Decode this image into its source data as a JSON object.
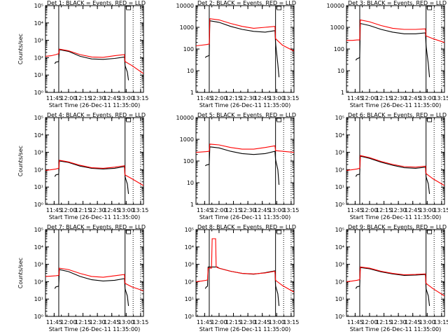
{
  "chart_data": [
    {
      "type": "line",
      "title": "Det 1: BLACK = Events, RED = LLD",
      "xlabel": "Start Time (26-Dec-11 11:35:00)",
      "ylabel": "Counts/sec",
      "ylog": true,
      "ylim": [
        1,
        100000
      ],
      "yticks": [
        "10⁰",
        "10¹",
        "10²",
        "10³",
        "10⁴",
        "10⁵"
      ],
      "xlim": [
        11.6,
        13.3
      ],
      "xticks": [
        11.75,
        12.0,
        12.25,
        12.5,
        12.75,
        13.0,
        13.25
      ],
      "xticklabels": [
        "11:45",
        "12:00",
        "12:15",
        "12:30",
        "12:45",
        "13:00",
        "13:15"
      ],
      "vlines": [
        11.83,
        12.98
      ],
      "dotted_vlines": [
        13.12,
        13.25
      ],
      "series": [
        {
          "color": "#ff0000",
          "x": [
            11.6,
            11.7,
            11.78,
            11.83,
            11.84,
            12.0,
            12.2,
            12.4,
            12.6,
            12.8,
            12.97,
            12.98,
            13.1,
            13.3
          ],
          "y": [
            120,
            130,
            150,
            170,
            310,
            250,
            150,
            110,
            105,
            130,
            150,
            60,
            35,
            12
          ]
        },
        {
          "color": "#000000",
          "x": [
            11.76,
            11.78,
            11.83,
            11.84,
            12.0,
            12.2,
            12.4,
            12.6,
            12.8,
            12.97,
            12.98,
            13.02,
            13.04
          ],
          "y": [
            45,
            55,
            60,
            290,
            230,
            120,
            85,
            80,
            90,
            110,
            35,
            15,
            5
          ]
        }
      ]
    },
    {
      "type": "line",
      "title": "Det 2: BLACK = Events, RED = LLD",
      "xlabel": "Start Time (26-Dec-11 11:35:00)",
      "ylabel": "",
      "ylog": true,
      "ylim": [
        1,
        10000
      ],
      "yticks": [
        "1",
        "10",
        "100",
        "1000",
        "10000"
      ],
      "xlim": [
        11.6,
        13.3
      ],
      "xticks": [
        11.75,
        12.0,
        12.25,
        12.5,
        12.75,
        13.0,
        13.25
      ],
      "xticklabels": [
        "11:45",
        "12:00",
        "12:15",
        "12:30",
        "12:45",
        "13:00",
        "13:15"
      ],
      "vlines": [
        11.83,
        12.98
      ],
      "dotted_vlines": [
        13.12,
        13.25
      ],
      "series": [
        {
          "color": "#ff0000",
          "x": [
            11.6,
            11.7,
            11.78,
            11.83,
            11.84,
            12.0,
            12.2,
            12.4,
            12.6,
            12.8,
            12.97,
            12.98,
            13.1,
            13.3
          ],
          "y": [
            140,
            150,
            160,
            170,
            2500,
            2200,
            1500,
            1100,
            900,
            1000,
            1100,
            300,
            150,
            80
          ]
        },
        {
          "color": "#000000",
          "x": [
            11.76,
            11.78,
            11.83,
            11.84,
            12.0,
            12.2,
            12.4,
            12.6,
            12.8,
            12.97,
            12.98,
            13.02,
            13.04
          ],
          "y": [
            40,
            45,
            50,
            2000,
            1700,
            1100,
            800,
            650,
            600,
            700,
            200,
            20,
            5
          ]
        }
      ]
    },
    {
      "type": "line",
      "title": "Det 3: BLACK = Events, RED = LLD",
      "xlabel": "Start Time (26-Dec-11 11:35:00)",
      "ylabel": "",
      "ylog": true,
      "ylim": [
        1,
        10000
      ],
      "yticks": [
        "1",
        "10",
        "100",
        "1000",
        "10000"
      ],
      "xlim": [
        11.6,
        13.3
      ],
      "xticks": [
        11.75,
        12.0,
        12.25,
        12.5,
        12.75,
        13.0,
        13.25
      ],
      "xticklabels": [
        "11:45",
        "12:00",
        "12:15",
        "12:30",
        "12:45",
        "13:00",
        "13:15"
      ],
      "vlines": [
        11.83,
        12.98
      ],
      "dotted_vlines": [
        13.12,
        13.25
      ],
      "series": [
        {
          "color": "#ff0000",
          "x": [
            11.6,
            11.7,
            11.78,
            11.83,
            11.84,
            12.0,
            12.2,
            12.4,
            12.6,
            12.8,
            12.97,
            12.98,
            13.1,
            13.3
          ],
          "y": [
            250,
            250,
            260,
            260,
            2200,
            1800,
            1200,
            900,
            800,
            800,
            850,
            400,
            300,
            200
          ]
        },
        {
          "color": "#000000",
          "x": [
            11.76,
            11.78,
            11.83,
            11.84,
            12.0,
            12.2,
            12.4,
            12.6,
            12.8,
            12.97,
            12.98,
            13.02,
            13.04
          ],
          "y": [
            30,
            35,
            40,
            1500,
            1200,
            800,
            600,
            500,
            500,
            550,
            150,
            20,
            5
          ]
        }
      ]
    },
    {
      "type": "line",
      "title": "Det 4: BLACK = Events, RED = LLD",
      "xlabel": "Start Time (26-Dec-11 11:35:00)",
      "ylabel": "Counts/sec",
      "ylog": true,
      "ylim": [
        1,
        100000
      ],
      "yticks": [
        "10⁰",
        "10¹",
        "10²",
        "10³",
        "10⁴",
        "10⁵"
      ],
      "xlim": [
        11.6,
        13.3
      ],
      "xticks": [
        11.75,
        12.0,
        12.25,
        12.5,
        12.75,
        13.0,
        13.25
      ],
      "xticklabels": [
        "11:45",
        "12:00",
        "12:15",
        "12:30",
        "12:45",
        "13:00",
        "13:15"
      ],
      "vlines": [
        11.83,
        12.98
      ],
      "dotted_vlines": [
        13.12,
        13.25
      ],
      "series": [
        {
          "color": "#ff0000",
          "x": [
            11.6,
            11.7,
            11.78,
            11.83,
            11.84,
            12.0,
            12.2,
            12.4,
            12.6,
            12.8,
            12.97,
            12.98,
            13.1,
            13.3
          ],
          "y": [
            90,
            100,
            110,
            120,
            350,
            280,
            180,
            130,
            120,
            140,
            170,
            50,
            30,
            12
          ]
        },
        {
          "color": "#000000",
          "x": [
            11.76,
            11.78,
            11.83,
            11.84,
            12.0,
            12.2,
            12.4,
            12.6,
            12.8,
            12.97,
            12.98,
            13.02,
            13.04
          ],
          "y": [
            40,
            50,
            55,
            320,
            260,
            160,
            120,
            110,
            120,
            150,
            40,
            15,
            4
          ]
        }
      ]
    },
    {
      "type": "line",
      "title": "Det 5: BLACK = Events, RED = LLD",
      "xlabel": "Start Time (26-Dec-11 11:35:00)",
      "ylabel": "",
      "ylog": true,
      "ylim": [
        1,
        10000
      ],
      "yticks": [
        "1",
        "10",
        "100",
        "1000",
        "10000"
      ],
      "xlim": [
        11.6,
        13.3
      ],
      "xticks": [
        11.75,
        12.0,
        12.25,
        12.5,
        12.75,
        13.0,
        13.25
      ],
      "xticklabels": [
        "11:45",
        "12:00",
        "12:15",
        "12:30",
        "12:45",
        "13:00",
        "13:15"
      ],
      "vlines": [
        11.83,
        12.98
      ],
      "dotted_vlines": [
        13.12,
        13.25
      ],
      "series": [
        {
          "color": "#ff0000",
          "x": [
            11.6,
            11.7,
            11.78,
            11.83,
            11.84,
            12.0,
            12.2,
            12.4,
            12.6,
            12.8,
            12.97,
            12.98,
            13.1,
            13.3
          ],
          "y": [
            250,
            260,
            270,
            280,
            600,
            550,
            420,
            350,
            350,
            420,
            500,
            300,
            280,
            250
          ]
        },
        {
          "color": "#000000",
          "x": [
            11.76,
            11.78,
            11.83,
            11.84,
            12.0,
            12.2,
            12.4,
            12.6,
            12.8,
            12.97,
            12.98,
            13.02,
            13.04
          ],
          "y": [
            60,
            65,
            70,
            450,
            400,
            280,
            220,
            200,
            220,
            280,
            120,
            40,
            8
          ]
        }
      ]
    },
    {
      "type": "line",
      "title": "Det 6: BLACK = Events, RED = LLD",
      "xlabel": "Start Time (26-Dec-11 11:35:00)",
      "ylabel": "",
      "ylog": true,
      "ylim": [
        1,
        100000
      ],
      "yticks": [
        "10⁰",
        "10¹",
        "10²",
        "10³",
        "10⁴",
        "10⁵"
      ],
      "xlim": [
        11.6,
        13.3
      ],
      "xticks": [
        11.75,
        12.0,
        12.25,
        12.5,
        12.75,
        13.0,
        13.25
      ],
      "xticklabels": [
        "11:45",
        "12:00",
        "12:15",
        "12:30",
        "12:45",
        "13:00",
        "13:15"
      ],
      "vlines": [
        11.83,
        12.98
      ],
      "dotted_vlines": [
        13.12,
        13.25
      ],
      "series": [
        {
          "color": "#ff0000",
          "x": [
            11.6,
            11.7,
            11.78,
            11.83,
            11.84,
            12.0,
            12.2,
            12.4,
            12.6,
            12.8,
            12.97,
            12.98,
            13.1,
            13.3
          ],
          "y": [
            90,
            100,
            110,
            120,
            650,
            500,
            300,
            200,
            150,
            140,
            160,
            60,
            30,
            12
          ]
        },
        {
          "color": "#000000",
          "x": [
            11.76,
            11.78,
            11.83,
            11.84,
            12.0,
            12.2,
            12.4,
            12.6,
            12.8,
            12.97,
            12.98,
            13.02,
            13.04
          ],
          "y": [
            40,
            50,
            55,
            600,
            450,
            270,
            180,
            130,
            120,
            140,
            40,
            15,
            4
          ]
        }
      ]
    },
    {
      "type": "line",
      "title": "Det 7: BLACK = Events, RED = LLD",
      "xlabel": "Start Time (26-Dec-11 11:35:00)",
      "ylabel": "Counts/sec",
      "ylog": true,
      "ylim": [
        1,
        100000
      ],
      "yticks": [
        "10⁰",
        "10¹",
        "10²",
        "10³",
        "10⁴",
        "10⁵"
      ],
      "xlim": [
        11.6,
        13.3
      ],
      "xticks": [
        11.75,
        12.0,
        12.25,
        12.5,
        12.75,
        13.0,
        13.25
      ],
      "xticklabels": [
        "11:45",
        "12:00",
        "12:15",
        "12:30",
        "12:45",
        "13:00",
        "13:15"
      ],
      "vlines": [
        11.83,
        12.98
      ],
      "dotted_vlines": [
        13.12,
        13.25
      ],
      "series": [
        {
          "color": "#ff0000",
          "x": [
            11.6,
            11.7,
            11.78,
            11.83,
            11.84,
            12.0,
            12.2,
            12.4,
            12.6,
            12.8,
            12.97,
            12.98,
            13.1,
            13.3
          ],
          "y": [
            200,
            210,
            220,
            230,
            600,
            500,
            300,
            200,
            180,
            220,
            260,
            80,
            50,
            30
          ]
        },
        {
          "color": "#000000",
          "x": [
            11.76,
            11.78,
            11.83,
            11.84,
            12.0,
            12.2,
            12.4,
            12.6,
            12.8,
            12.97,
            12.98,
            13.02,
            13.04
          ],
          "y": [
            40,
            50,
            55,
            500,
            380,
            200,
            130,
            110,
            120,
            150,
            40,
            15,
            4
          ]
        }
      ]
    },
    {
      "type": "line",
      "title": "Det 8: BLACK = Events, RED = LLD",
      "xlabel": "Start Time (26-Dec-11 11:35:00)",
      "ylabel": "",
      "ylog": true,
      "ylim": [
        1,
        100000
      ],
      "yticks": [
        "10⁰",
        "10¹",
        "10²",
        "10³",
        "10⁴",
        "10⁵"
      ],
      "xlim": [
        11.6,
        13.3
      ],
      "xticks": [
        11.75,
        12.0,
        12.25,
        12.5,
        12.75,
        13.0,
        13.25
      ],
      "xticklabels": [
        "11:45",
        "12:00",
        "12:15",
        "12:30",
        "12:45",
        "13:00",
        "13:15"
      ],
      "vlines": [
        11.83,
        12.98
      ],
      "dotted_vlines": [
        13.12,
        13.25
      ],
      "series": [
        {
          "color": "#ff0000",
          "x": [
            11.6,
            11.7,
            11.78,
            11.8,
            11.81,
            11.87,
            11.88,
            11.94,
            11.95,
            11.97,
            12.0,
            12.2,
            12.4,
            12.6,
            12.8,
            12.97,
            12.98,
            13.1,
            13.3
          ],
          "y": [
            100,
            110,
            120,
            130,
            600,
            600,
            30000,
            30000,
            700,
            650,
            600,
            400,
            300,
            280,
            320,
            400,
            120,
            60,
            25
          ]
        },
        {
          "color": "#000000",
          "x": [
            11.76,
            11.78,
            11.8,
            11.81,
            11.97,
            12.0,
            12.2,
            12.4,
            12.6,
            12.8,
            12.97,
            12.98,
            13.02,
            13.04
          ],
          "y": [
            40,
            50,
            55,
            700,
            700,
            600,
            400,
            300,
            270,
            330,
            420,
            60,
            20,
            4
          ]
        }
      ]
    },
    {
      "type": "line",
      "title": "Det 9: BLACK = Events, RED = LLD",
      "xlabel": "Start Time (26-Dec-11 11:35:00)",
      "ylabel": "",
      "ylog": true,
      "ylim": [
        1,
        100000
      ],
      "yticks": [
        "10⁰",
        "10¹",
        "10²",
        "10³",
        "10⁴",
        "10⁵"
      ],
      "xlim": [
        11.6,
        13.3
      ],
      "xticks": [
        11.75,
        12.0,
        12.25,
        12.5,
        12.75,
        13.0,
        13.25
      ],
      "xticklabels": [
        "11:45",
        "12:00",
        "12:15",
        "12:30",
        "12:45",
        "13:00",
        "13:15"
      ],
      "vlines": [
        11.83,
        12.98
      ],
      "dotted_vlines": [
        13.12,
        13.25
      ],
      "series": [
        {
          "color": "#ff0000",
          "x": [
            11.6,
            11.7,
            11.78,
            11.83,
            11.84,
            12.0,
            12.2,
            12.4,
            12.6,
            12.8,
            12.97,
            12.98,
            13.1,
            13.3
          ],
          "y": [
            100,
            110,
            120,
            130,
            700,
            600,
            400,
            300,
            250,
            260,
            280,
            80,
            40,
            15
          ]
        },
        {
          "color": "#000000",
          "x": [
            11.76,
            11.78,
            11.83,
            11.84,
            12.0,
            12.2,
            12.4,
            12.6,
            12.8,
            12.97,
            12.98,
            13.02,
            13.04
          ],
          "y": [
            40,
            50,
            55,
            650,
            550,
            370,
            280,
            230,
            240,
            260,
            40,
            15,
            4
          ]
        }
      ]
    }
  ]
}
